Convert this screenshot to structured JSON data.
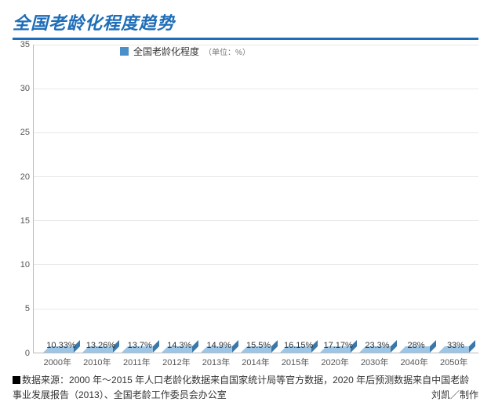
{
  "title": "全国老龄化程度趋势",
  "legend": {
    "label": "全国老龄化程度",
    "unit": "（单位：%）"
  },
  "chart": {
    "type": "bar",
    "ylim": [
      0,
      35
    ],
    "ytick_step": 5,
    "yticks": [
      0,
      5,
      10,
      15,
      20,
      25,
      30,
      35
    ],
    "bar_color": "#4a8fc7",
    "bar_top_color": "#9cc5e6",
    "bar_side_color": "#3a78aa",
    "grid_color": "#e8e8e8",
    "background_color": "#ffffff",
    "label_fontsize": 11,
    "title_fontsize": 22,
    "title_color": "#1e6db8",
    "categories": [
      "2000年",
      "2010年",
      "2011年",
      "2012年",
      "2013年",
      "2014年",
      "2015年",
      "2020年",
      "2030年",
      "2040年",
      "2050年"
    ],
    "values": [
      10.33,
      13.26,
      13.7,
      14.3,
      14.9,
      15.5,
      16.15,
      17.17,
      23.3,
      28,
      33
    ],
    "value_labels": [
      "10.33%",
      "13.26%",
      "13.7%",
      "14.3%",
      "14.9%",
      "15.5%",
      "16.15%",
      "17.17%",
      "23.3%",
      "28%",
      "33%"
    ]
  },
  "footnote": {
    "prefix": "数据来源：",
    "line": "2000 年～2015 年人口老龄化数据来自国家统计局等官方数据，2020 年后预测数据来自中国老龄事业发展报告（2013）、全国老龄工作委员会办公室",
    "credit": "刘凯／制作"
  }
}
